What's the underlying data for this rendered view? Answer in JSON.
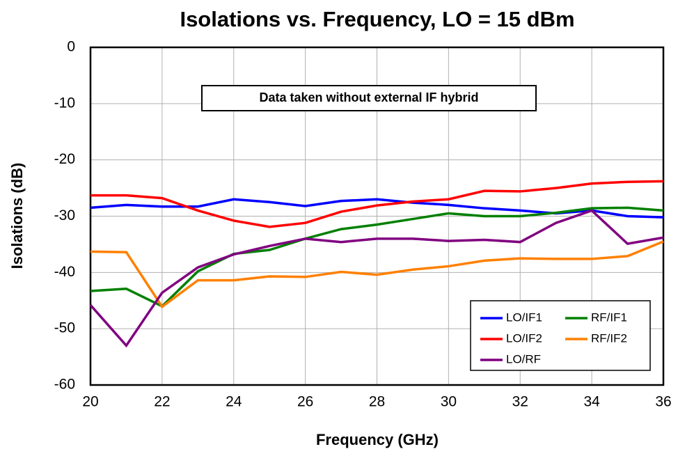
{
  "chart_data": {
    "type": "line",
    "title": "Isolations vs. Frequency, LO = 15 dBm",
    "x_label": "Frequency (GHz)",
    "y_label": "Isolations (dB)",
    "annotation": "Data taken without external IF hybrid",
    "x": [
      20,
      21,
      22,
      23,
      24,
      25,
      26,
      27,
      28,
      29,
      30,
      31,
      32,
      33,
      34,
      35,
      36
    ],
    "series": [
      {
        "name": "LO/IF1",
        "color": "#0000ff",
        "values": [
          -28.5,
          -28,
          -28.3,
          -28.3,
          -27,
          -27.5,
          -28.2,
          -27.3,
          -27,
          -27.6,
          -28,
          -28.6,
          -29,
          -29.5,
          -29,
          -30,
          -30.2
        ]
      },
      {
        "name": "RF/IF1",
        "color": "#008000",
        "values": [
          -43.3,
          -42.9,
          -46,
          -39.8,
          -36.7,
          -36,
          -34,
          -32.3,
          -31.5,
          -30.5,
          -29.5,
          -30,
          -30,
          -29.4,
          -28.6,
          -28.5,
          -29
        ]
      },
      {
        "name": "LO/IF2",
        "color": "#ff0000",
        "values": [
          -26.3,
          -26.3,
          -26.8,
          -29,
          -30.8,
          -31.9,
          -31.2,
          -29.2,
          -28.1,
          -27.4,
          -27,
          -25.5,
          -25.6,
          -25,
          -24.2,
          -23.9,
          -23.8
        ]
      },
      {
        "name": "RF/IF2",
        "color": "#ff8000",
        "values": [
          -36.3,
          -36.4,
          -46.1,
          -41.4,
          -41.4,
          -40.7,
          -40.8,
          -39.9,
          -40.4,
          -39.5,
          -38.9,
          -37.9,
          -37.5,
          -37.6,
          -37.6,
          -37.1,
          -34.5
        ]
      },
      {
        "name": "LO/RF",
        "color": "#800080",
        "values": [
          -45.8,
          -53,
          -43.6,
          -39.1,
          -36.8,
          -35.3,
          -34,
          -34.6,
          -34,
          -34,
          -34.4,
          -34.2,
          -34.6,
          -31.2,
          -29,
          -34.9,
          -33.8
        ]
      }
    ],
    "xlim": [
      20,
      36
    ],
    "xticks": [
      20,
      22,
      24,
      26,
      28,
      30,
      32,
      34,
      36
    ],
    "ylim": [
      -60,
      0
    ],
    "yticks": [
      -60,
      -50,
      -40,
      -30,
      -20,
      -10,
      0
    ],
    "grid": true,
    "legend_position": "lower right"
  }
}
